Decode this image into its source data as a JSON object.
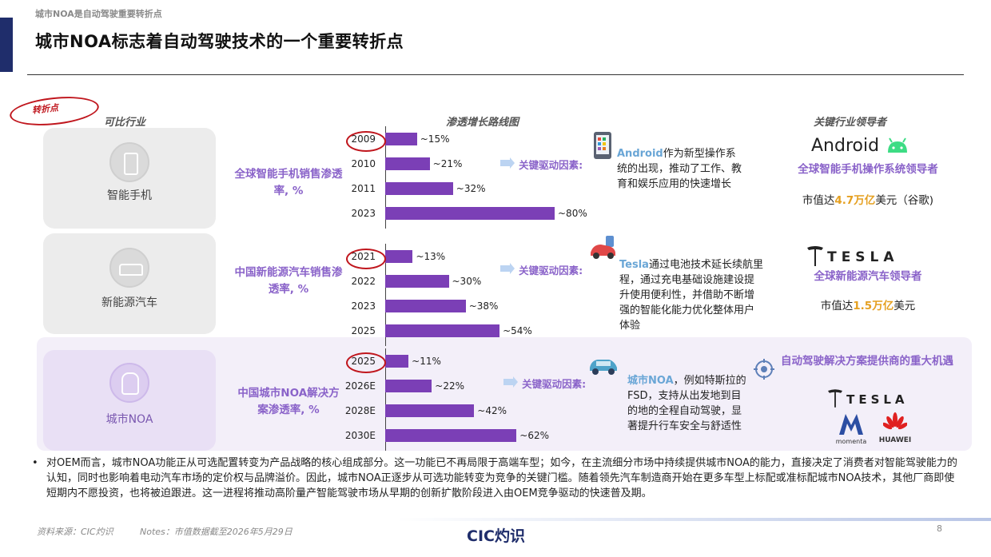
{
  "header": {
    "tag": "城市NOA是自动驾驶重要转折点",
    "title": "城市NOA标志着自动驾驶技术的一个重要转折点"
  },
  "turning_point": "转折点",
  "columns": {
    "comparable": "可比行业",
    "growth": "渗透增长路线图",
    "leaders": "关键行业领导者"
  },
  "rows": [
    {
      "label": "智能手机",
      "metric": "全球智能手机销售渗透率, %",
      "bars": [
        {
          "year": "2009",
          "value": 15,
          "label": "~15%"
        },
        {
          "year": "2010",
          "value": 21,
          "label": "~21%"
        },
        {
          "year": "2011",
          "value": 32,
          "label": "~32%"
        },
        {
          "year": "2023",
          "value": 80,
          "label": "~80%"
        }
      ],
      "driver_label": "关键驱动因素:",
      "desc_highlight": "Android",
      "desc_text": "作为新型操作系统的出现，推动了工作、教育和娱乐应用的快速增长",
      "leader_logo": "Android",
      "leader_sub": "全球智能手机操作系统领导者",
      "mcap_pre": "市值达",
      "mcap_num": "4.7万亿",
      "mcap_post": "美元（谷歌)"
    },
    {
      "label": "新能源汽车",
      "metric": "中国新能源汽车销售渗透率, %",
      "bars": [
        {
          "year": "2021",
          "value": 13,
          "label": "~13%"
        },
        {
          "year": "2022",
          "value": 30,
          "label": "~30%"
        },
        {
          "year": "2023",
          "value": 38,
          "label": "~38%"
        },
        {
          "year": "2025",
          "value": 54,
          "label": "~54%"
        }
      ],
      "driver_label": "关键驱动因素:",
      "desc_highlight": "Tesla",
      "desc_text": "通过电池技术延长续航里程，通过充电基础设施建设提升使用便利性，并借助不断增强的智能化能力优化整体用户体验",
      "leader_logo": "TESLA",
      "leader_sub": "全球新能源汽车领导者",
      "mcap_pre": "市值达",
      "mcap_num": "1.5万亿",
      "mcap_post": "美元"
    },
    {
      "label": "城市NOA",
      "metric": "中国城市NOA解决方案渗透率, %",
      "bars": [
        {
          "year": "2025",
          "value": 11,
          "label": "~11%"
        },
        {
          "year": "2026E",
          "value": 22,
          "label": "~22%"
        },
        {
          "year": "2028E",
          "value": 42,
          "label": "~42%"
        },
        {
          "year": "2030E",
          "value": 62,
          "label": "~62%"
        }
      ],
      "driver_label": "关键驱动因素:",
      "desc_highlight": "城市NOA",
      "desc_text": "，例如特斯拉的FSD，支持从出发地到目的地的全程自动驾驶，显著提升行车安全与舒适性",
      "leader_title": "自动驾驶解决方案提供商的重大机遇",
      "leader_logo": "TESLA",
      "logo2_text": "momenta",
      "logo3_text": "HUAWEI"
    }
  ],
  "bullet": "对OEM而言，城市NOA功能正从可选配置转变为产品战略的核心组成部分。这一功能已不再局限于高端车型；如今，在主流细分市场中持续提供城市NOA的能力，直接决定了消费者对智能驾驶能力的认知，同时也影响着电动汽车市场的定价权与品牌溢价。因此，城市NOA正逐步从可选功能转变为竞争的关键门槛。随着领先汽车制造商开始在更多车型上标配或准标配城市NOA技术，其他厂商即使短期内不愿投资，也将被迫跟进。这一进程将推动高阶量产智能驾驶市场从早期的创新扩散阶段进入由OEM竞争驱动的快速普及期。",
  "footer": {
    "source": "资料来源：CIC灼识",
    "notes": "Notes：市值数据截至2026年5月29日",
    "brand": "CIC灼识",
    "page": "8"
  },
  "colors": {
    "navy": "#1f2d6b",
    "bar": "#7b3fb6",
    "accent_purple": "#8a63c9",
    "highlight_blue": "#6aa6d6",
    "gold": "#e5a021",
    "red": "#c0161d"
  }
}
